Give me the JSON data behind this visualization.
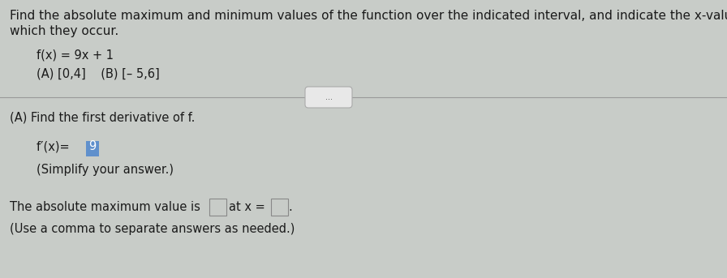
{
  "bg_color": "#c8ccc8",
  "text_color": "#1a1a1a",
  "title_text1": "Find the absolute maximum and minimum values of the function over the indicated interval, and indicate the x-values at",
  "title_text2": "which they occur.",
  "function_line": "f(x) = 9x + 1",
  "intervals_line": "(A) [0,4]    (B) [– 5,6]",
  "section_label": "(A) Find the first derivative of f.",
  "deriv_prefix": "f′(x)= ",
  "deriv_value": "9",
  "derivative_highlight_color": "#6090cc",
  "simplify_line": "(Simplify your answer.)",
  "max_text": "The absolute maximum value is",
  "at_x_text": "at x =",
  "period_text": ".",
  "use_comma_line": "(Use a comma to separate answers as needed.)",
  "dots_text": "...",
  "divider_color": "#999999",
  "box_edge_color": "#888888",
  "title_fontsize": 11.0,
  "body_fontsize": 10.5,
  "small_fontsize": 9.0
}
